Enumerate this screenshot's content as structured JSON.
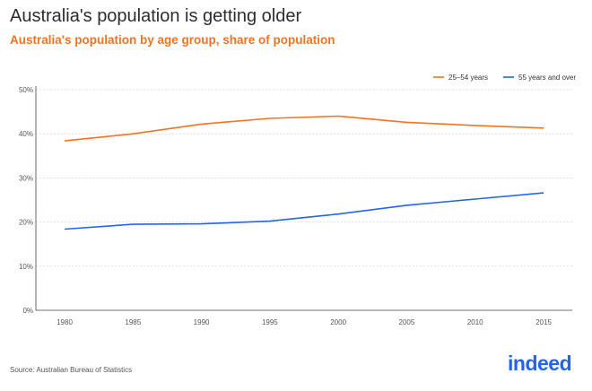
{
  "title": "Australia's population is getting older",
  "subtitle": "Australia's population by age group, share of population",
  "source": "Source: Australian Bureau of Statistics",
  "logo": "indeed",
  "colors": {
    "series_25_54": "#f27321",
    "series_55_over": "#2164f3",
    "grid": "#d9d9d9",
    "logo": "#2164f3"
  },
  "chart_data": {
    "type": "line",
    "title": "Australia's population is getting older",
    "subtitle": "Australia's population by age group, share of population",
    "xlabel": "",
    "ylabel": "",
    "x": [
      1980,
      1985,
      1990,
      1995,
      2000,
      2005,
      2010,
      2015
    ],
    "xlim": [
      1980,
      2015
    ],
    "ylim": [
      0,
      50
    ],
    "y_ticks": [
      0,
      10,
      20,
      30,
      40,
      50
    ],
    "y_tick_labels": [
      "0%",
      "10%",
      "20%",
      "30%",
      "40%",
      "50%"
    ],
    "x_tick_labels": [
      "1980",
      "1985",
      "1990",
      "1995",
      "2000",
      "2005",
      "2010",
      "2015"
    ],
    "grid": true,
    "legend_position": "top-right",
    "series": [
      {
        "name": "25–54 years",
        "color": "#f27321",
        "values": [
          38.4,
          40.0,
          42.2,
          43.5,
          44.0,
          42.6,
          41.9,
          41.3
        ]
      },
      {
        "name": "55 years and over",
        "color": "#2164f3",
        "values": [
          18.4,
          19.5,
          19.6,
          20.2,
          21.8,
          23.8,
          25.2,
          26.6
        ]
      }
    ]
  }
}
